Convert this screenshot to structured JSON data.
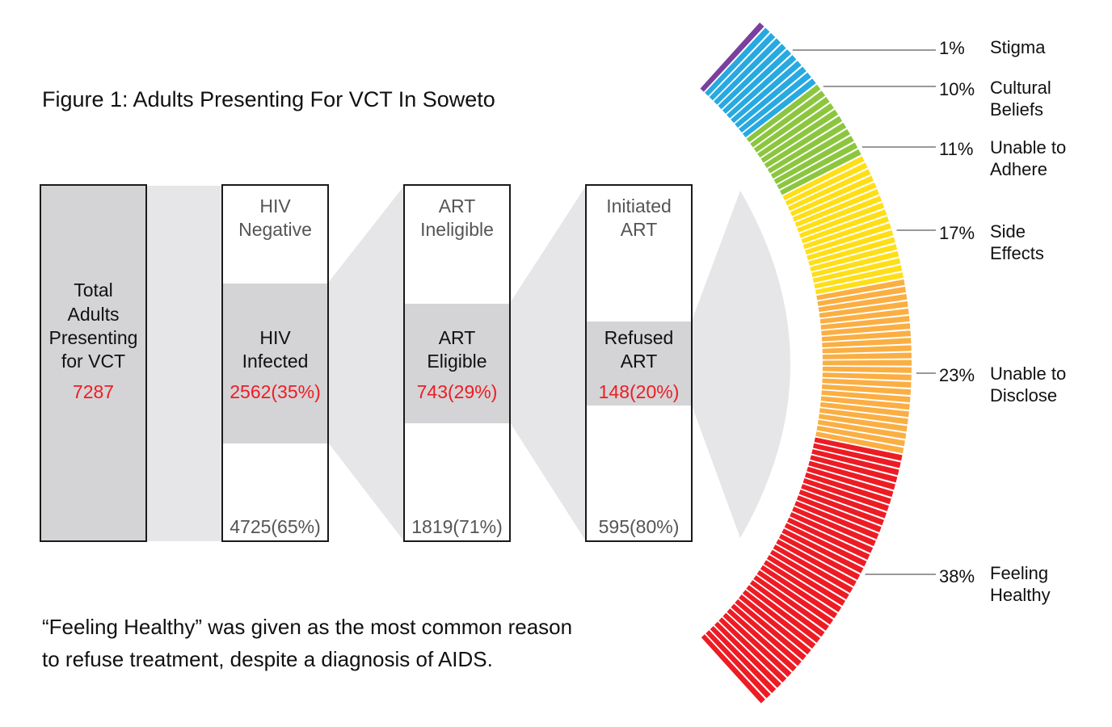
{
  "title": "Figure 1: Adults Presenting For VCT In Soweto",
  "footnote": {
    "line1": "“Feeling Healthy” was given as the most common reason",
    "line2": "to refuse treatment, despite a diagnosis of AIDS."
  },
  "chart_data": {
    "type": "funnel-and-arc",
    "title": "Figure 1: Adults Presenting For VCT In Soweto",
    "funnel": [
      {
        "label_line1": "Total",
        "label_line2": "Adults",
        "label_line3": "Presenting",
        "label_line4": "for VCT",
        "value_text": "7287",
        "value": 7287
      },
      {
        "top_line1": "HIV",
        "top_line2": "Negative",
        "mid_line1": "HIV",
        "mid_line2": "Infected",
        "selected_text": "2562(35%)",
        "selected_value": 2562,
        "selected_pct": 35,
        "other_text": "4725(65%)",
        "other_value": 4725,
        "other_pct": 65
      },
      {
        "top_line1": "ART",
        "top_line2": "Ineligible",
        "mid_line1": "ART",
        "mid_line2": "Eligible",
        "selected_text": "743(29%)",
        "selected_value": 743,
        "selected_pct": 29,
        "other_text": "1819(71%)",
        "other_value": 1819,
        "other_pct": 71
      },
      {
        "top_line1": "Initiated",
        "top_line2": "ART",
        "mid_line1": "Refused",
        "mid_line2": "ART",
        "selected_text": "148(20%)",
        "selected_value": 148,
        "selected_pct": 20,
        "other_text": "595(80%)",
        "other_value": 595,
        "other_pct": 80
      }
    ],
    "reasons": [
      {
        "name_line1": "Stigma",
        "name_line2": "",
        "pct_text": "1%",
        "value": 1,
        "color": "#7b3f9e"
      },
      {
        "name_line1": "Cultural",
        "name_line2": "Beliefs",
        "pct_text": "10%",
        "value": 10,
        "color": "#27a9e1"
      },
      {
        "name_line1": "Unable to",
        "name_line2": "Adhere",
        "pct_text": "11%",
        "value": 11,
        "color": "#8cc63f"
      },
      {
        "name_line1": "Side",
        "name_line2": "Effects",
        "pct_text": "17%",
        "value": 17,
        "color": "#ffde17"
      },
      {
        "name_line1": "Unable to",
        "name_line2": "Disclose",
        "pct_text": "23%",
        "value": 23,
        "color": "#fbae42"
      },
      {
        "name_line1": "Feeling",
        "name_line2": "Healthy",
        "pct_text": "38%",
        "value": 38,
        "color": "#ed1c24"
      }
    ],
    "colors": {
      "box_fill": "#d4d4d6",
      "connector": "#e6e6e8",
      "highlight_text": "#ee1c24",
      "leader_line": "#999999"
    }
  }
}
